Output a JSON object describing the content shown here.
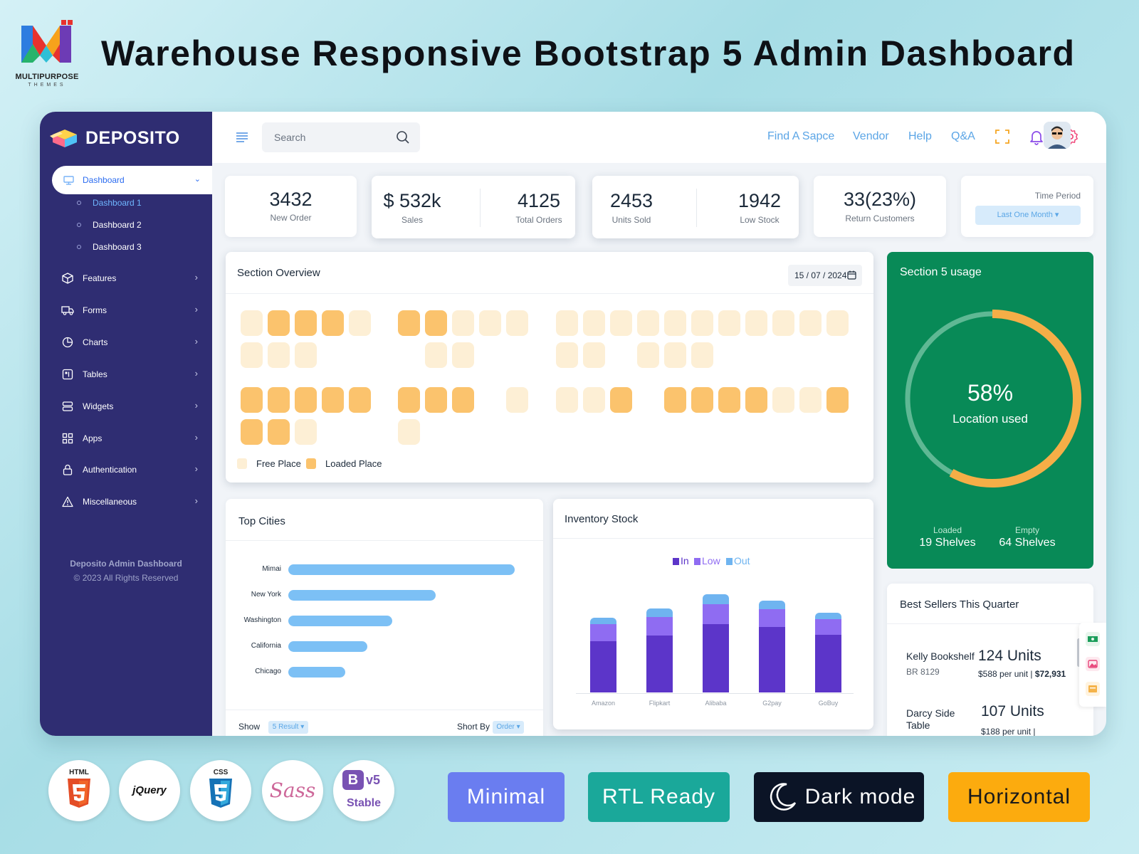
{
  "banner": {
    "logo_name": "MULTIPURPOSE",
    "logo_sub": "THEMES",
    "headline": "Warehouse Responsive Bootstrap 5 Admin Dashboard"
  },
  "sidebar": {
    "brand": "DEPOSITO",
    "active": "Dashboard",
    "subitems": [
      "Dashboard 1",
      "Dashboard 2",
      "Dashboard 3"
    ],
    "items": [
      "Features",
      "Forms",
      "Charts",
      "Tables",
      "Widgets",
      "Apps",
      "Authentication",
      "Miscellaneous"
    ],
    "footer_title": "Deposito Admin Dashboard",
    "footer_copy": "© 2023 All Rights Reserved"
  },
  "topbar": {
    "search_placeholder": "Search",
    "links": [
      "Find A Sapce",
      "Vendor",
      "Help",
      "Q&A"
    ]
  },
  "stats": {
    "new_order": {
      "value": "3432",
      "label": "New Order"
    },
    "sales": {
      "value": "$ 532k",
      "label": "Sales"
    },
    "total_orders": {
      "value": "4125",
      "label": "Total Orders"
    },
    "units_sold": {
      "value": "2453",
      "label": "Units Sold"
    },
    "low_stock": {
      "value": "1942",
      "label": "Low Stock"
    },
    "return_customers": {
      "value": "33(23%)",
      "label": "Return Customers"
    },
    "time_period": {
      "label": "Time Period",
      "value": "Last One Month ▾"
    }
  },
  "overview": {
    "title": "Section Overview",
    "date": "15 / 07 / 2024",
    "legend_free": "Free Place",
    "legend_loaded": "Loaded Place",
    "colors": {
      "free": "#fdefd5",
      "loaded": "#fbc36d"
    }
  },
  "usage": {
    "title": "Section 5 usage",
    "percent_text": "58%",
    "fraction": 0.58,
    "label": "Location used",
    "loaded_label": "Loaded",
    "loaded_value": "19 Shelves",
    "empty_label": "Empty",
    "empty_value": "64 Shelves"
  },
  "cities": {
    "title": "Top Cities",
    "show_label": "Show",
    "show_value": "5 Result ▾",
    "sort_label": "Short By",
    "sort_value": "Order ▾"
  },
  "inventory": {
    "title": "Inventory Stock",
    "legend": [
      {
        "name": "In",
        "color": "#5c35c9"
      },
      {
        "name": "Low",
        "color": "#8f6cf2"
      },
      {
        "name": "Out",
        "color": "#6fb4f0"
      }
    ]
  },
  "chart_data": [
    {
      "type": "bar",
      "orientation": "horizontal",
      "categories": [
        "Mimai",
        "New York",
        "Washington",
        "California",
        "Chicago"
      ],
      "values": [
        100,
        65,
        46,
        35,
        25
      ]
    },
    {
      "type": "bar",
      "stacked": true,
      "categories": [
        "Amazon",
        "Flipkart",
        "Alibaba",
        "G2pay",
        "GoBuy"
      ],
      "series": [
        {
          "name": "In",
          "values": [
            72,
            80,
            96,
            92,
            81
          ]
        },
        {
          "name": "Low",
          "values": [
            24,
            26,
            28,
            25,
            22
          ]
        },
        {
          "name": "Out",
          "values": [
            9,
            12,
            14,
            12,
            9
          ]
        }
      ]
    }
  ],
  "best_sellers": {
    "title": "Best Sellers This Quarter",
    "rows": [
      {
        "name": "Kelly Bookshelf",
        "code": "BR 8129",
        "units": "124 Units",
        "price": "$588 per unit | ",
        "total": "$72,931"
      },
      {
        "name": "Darcy Side Table",
        "code": "",
        "units": "107 Units",
        "price": "$188 per unit |",
        "total": ""
      }
    ]
  },
  "badges": {
    "html": "HTML",
    "jquery": "jQuery",
    "css": "CSS",
    "sass": "Sass",
    "bootstrap": "B",
    "bootstrap_ver": "v5",
    "bootstrap_stable": "Stable",
    "pills": [
      "Minimal",
      "RTL Ready",
      "Dark mode",
      "Horizontal"
    ]
  }
}
